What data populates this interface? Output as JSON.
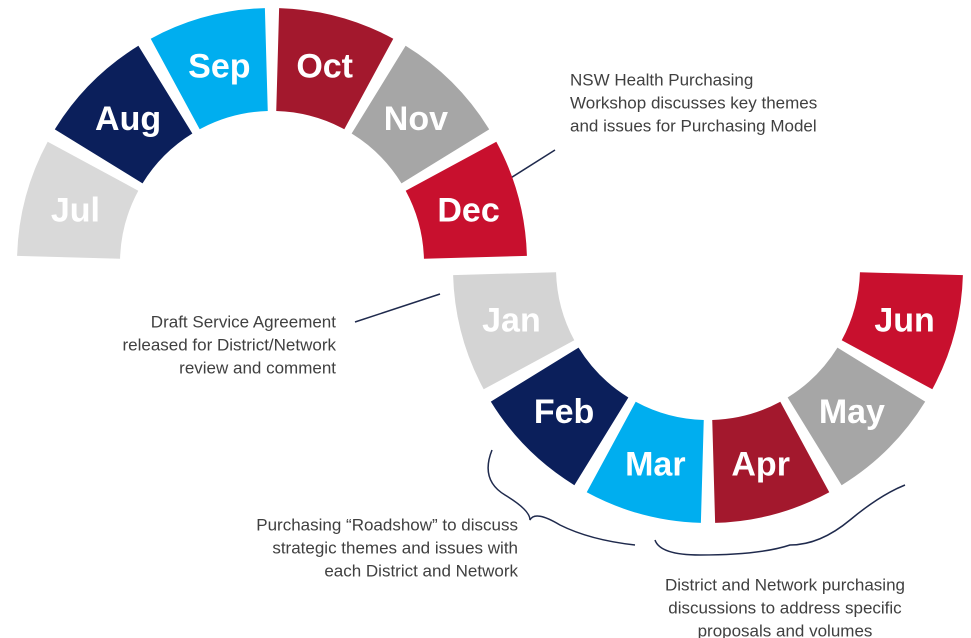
{
  "months": [
    {
      "label": "Jul",
      "color": "#d9d9d9"
    },
    {
      "label": "Aug",
      "color": "#0b1f5b"
    },
    {
      "label": "Sep",
      "color": "#00aeef"
    },
    {
      "label": "Oct",
      "color": "#a3182d"
    },
    {
      "label": "Nov",
      "color": "#a6a6a6"
    },
    {
      "label": "Dec",
      "color": "#c8102e"
    },
    {
      "label": "Jan",
      "color": "#d4d4d4"
    },
    {
      "label": "Feb",
      "color": "#0b1f5b"
    },
    {
      "label": "Mar",
      "color": "#00aeef"
    },
    {
      "label": "Apr",
      "color": "#a3182d"
    },
    {
      "label": "May",
      "color": "#a6a6a6"
    },
    {
      "label": "Jun",
      "color": "#c8102e"
    }
  ],
  "annotations": [
    {
      "lines": [
        "NSW Health Purchasing",
        "Workshop discusses key themes",
        "and issues for Purchasing Model"
      ]
    },
    {
      "lines": [
        "Draft Service Agreement",
        "released for District/Network",
        "review and comment"
      ]
    },
    {
      "lines": [
        "Purchasing “Roadshow” to discuss",
        "strategic themes and issues with",
        "each District and Network"
      ]
    },
    {
      "lines": [
        "District and Network purchasing",
        "discussions to address specific",
        "proposals and volumes"
      ]
    }
  ]
}
